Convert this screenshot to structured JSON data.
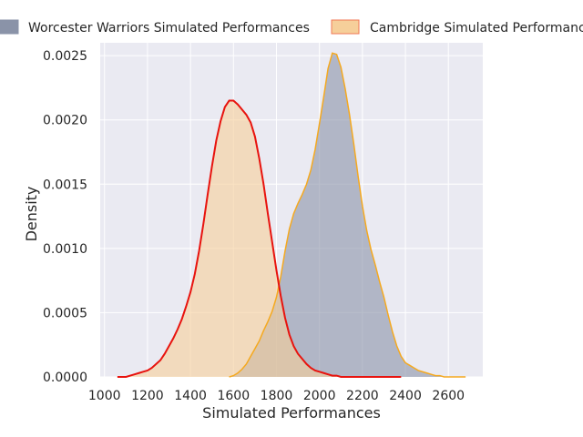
{
  "chart_data": {
    "type": "area",
    "subtype": "kde",
    "xlabel": "Simulated Performances",
    "ylabel": "Density",
    "xlim": [
      980,
      2760
    ],
    "ylim": [
      0,
      0.0026
    ],
    "xticks": [
      1000,
      1200,
      1400,
      1600,
      1800,
      2000,
      2200,
      2400,
      2600
    ],
    "yticks": [
      0.0,
      0.0005,
      0.001,
      0.0015,
      0.002,
      0.0025
    ],
    "ytick_labels": [
      "0.0000",
      "0.0005",
      "0.0010",
      "0.0015",
      "0.0020",
      "0.0025"
    ],
    "grid": true,
    "legend_position": "top (above plot, clipped at right)",
    "series": [
      {
        "name": "Worcester Warriors Simulated Performances",
        "fill_color": "#8a93a8",
        "line_color": "#f5a91f",
        "x": [
          1580,
          1600,
          1620,
          1640,
          1660,
          1680,
          1700,
          1720,
          1740,
          1760,
          1780,
          1800,
          1820,
          1840,
          1860,
          1880,
          1900,
          1920,
          1940,
          1960,
          1980,
          2000,
          2020,
          2040,
          2060,
          2080,
          2100,
          2120,
          2140,
          2160,
          2180,
          2200,
          2220,
          2240,
          2260,
          2280,
          2300,
          2320,
          2340,
          2360,
          2380,
          2400,
          2420,
          2440,
          2460,
          2480,
          2500,
          2520,
          2540,
          2560,
          2580,
          2600,
          2620,
          2640,
          2660,
          2680
        ],
        "y": [
          0.0,
          1e-05,
          3e-05,
          6e-05,
          0.0001,
          0.00016,
          0.00022,
          0.00028,
          0.00036,
          0.00043,
          0.00051,
          0.00062,
          0.00078,
          0.00098,
          0.00115,
          0.00127,
          0.00135,
          0.00142,
          0.0015,
          0.00161,
          0.00177,
          0.00197,
          0.00218,
          0.0024,
          0.00252,
          0.00251,
          0.00241,
          0.00224,
          0.00204,
          0.00181,
          0.00156,
          0.00133,
          0.00114,
          0.00099,
          0.00087,
          0.00074,
          0.00062,
          0.00048,
          0.00035,
          0.00024,
          0.00016,
          0.00011,
          9e-05,
          7e-05,
          5e-05,
          4e-05,
          3e-05,
          2e-05,
          1e-05,
          1e-05,
          0.0,
          0.0,
          0.0,
          0.0,
          0.0,
          0.0
        ]
      },
      {
        "name": "Cambridge Simulated Performances",
        "fill_color": "#f6cf9a",
        "line_color": "#e8130e",
        "x": [
          1060,
          1080,
          1100,
          1120,
          1140,
          1160,
          1180,
          1200,
          1220,
          1240,
          1260,
          1280,
          1300,
          1320,
          1340,
          1360,
          1380,
          1400,
          1420,
          1440,
          1460,
          1480,
          1500,
          1520,
          1540,
          1560,
          1580,
          1600,
          1620,
          1640,
          1660,
          1680,
          1700,
          1720,
          1740,
          1760,
          1780,
          1800,
          1820,
          1840,
          1860,
          1880,
          1900,
          1920,
          1940,
          1960,
          1980,
          2000,
          2020,
          2040,
          2060,
          2080,
          2100,
          2120,
          2140,
          2160,
          2180,
          2200,
          2220,
          2240,
          2260,
          2280,
          2300,
          2320,
          2340,
          2360,
          2380
        ],
        "y": [
          0.0,
          0.0,
          0.0,
          1e-05,
          2e-05,
          3e-05,
          4e-05,
          5e-05,
          7e-05,
          0.0001,
          0.00013,
          0.00018,
          0.00024,
          0.0003,
          0.00037,
          0.00045,
          0.00055,
          0.00066,
          0.0008,
          0.00098,
          0.00119,
          0.00142,
          0.00164,
          0.00184,
          0.00199,
          0.0021,
          0.00215,
          0.00215,
          0.00212,
          0.00208,
          0.00204,
          0.00198,
          0.00187,
          0.0017,
          0.0015,
          0.00127,
          0.00105,
          0.00083,
          0.00063,
          0.00046,
          0.00033,
          0.00024,
          0.00018,
          0.00014,
          0.0001,
          7e-05,
          5e-05,
          4e-05,
          3e-05,
          2e-05,
          1e-05,
          1e-05,
          0.0,
          0.0,
          0.0,
          0.0,
          0.0,
          0.0,
          0.0,
          0.0,
          0.0,
          0.0,
          0.0,
          0.0,
          0.0,
          0.0,
          0.0
        ]
      }
    ]
  },
  "colors": {
    "plot_background": "#eaeaf2",
    "grid": "#ffffff",
    "text": "#262626"
  }
}
